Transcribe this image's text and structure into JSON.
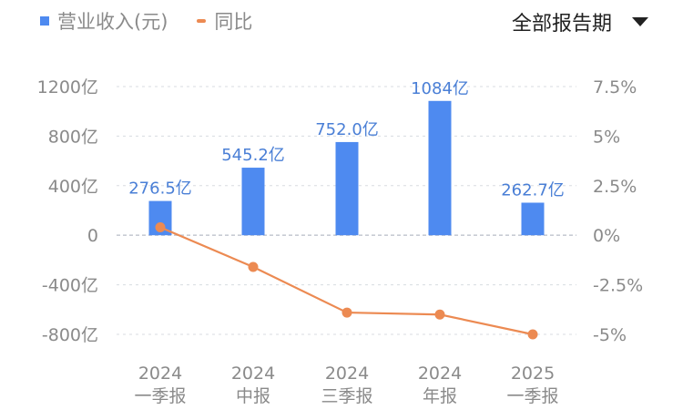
{
  "legend": {
    "bar_label": "营业收入(元)",
    "line_label": "同比"
  },
  "period_selector": {
    "label": "全部报告期"
  },
  "colors": {
    "bar": "#4e8af0",
    "line": "#ec8a52",
    "grid": "#c8ccd4"
  },
  "chart_data": {
    "type": "bar+line",
    "categories": [
      [
        "2024",
        "一季报"
      ],
      [
        "2024",
        "中报"
      ],
      [
        "2024",
        "三季报"
      ],
      [
        "2024",
        "年报"
      ],
      [
        "2025",
        "一季报"
      ]
    ],
    "series": [
      {
        "name": "营业收入(元)",
        "type": "bar",
        "axis": "left",
        "values": [
          276.5,
          545.2,
          752.0,
          1084,
          262.7
        ],
        "labels": [
          "276.5亿",
          "545.2亿",
          "752.0亿",
          "1084亿",
          "262.7亿"
        ]
      },
      {
        "name": "同比",
        "type": "line",
        "axis": "right",
        "values": [
          0.4,
          -1.6,
          -3.9,
          -4.0,
          -5.0
        ]
      }
    ],
    "y_left": {
      "ticks": [
        1200,
        800,
        400,
        0,
        -400,
        -800
      ],
      "tick_labels": [
        "1200亿",
        "800亿",
        "400亿",
        "0",
        "-400亿",
        "-800亿"
      ],
      "range": [
        -800,
        1200
      ]
    },
    "y_right": {
      "ticks": [
        7.5,
        5,
        2.5,
        0,
        -2.5,
        -5
      ],
      "tick_labels": [
        "7.5%",
        "5%",
        "2.5%",
        "0%",
        "-2.5%",
        "-5%"
      ],
      "range": [
        -5,
        7.5
      ]
    },
    "grid": true
  }
}
